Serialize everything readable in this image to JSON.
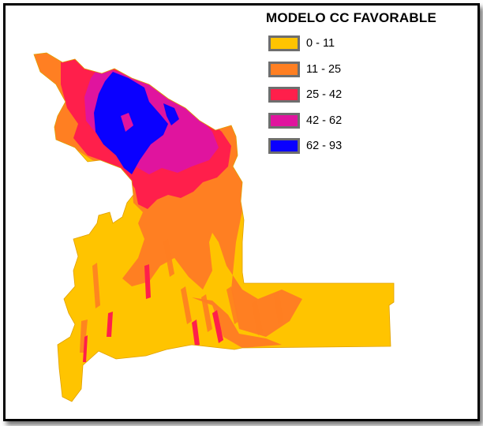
{
  "legend": {
    "title": "MODELO CC FAVORABLE",
    "classes": [
      {
        "label": "0 - 11",
        "color": "#FFC400"
      },
      {
        "label": "11 - 25",
        "color": "#FF7F22"
      },
      {
        "label": "25 - 42",
        "color": "#FF1F4B"
      },
      {
        "label": "42 - 62",
        "color": "#E0149E"
      },
      {
        "label": "62 - 93",
        "color": "#0A00FF"
      }
    ]
  },
  "map": {
    "border_color": "#000000",
    "background": "#FFFFFF"
  }
}
